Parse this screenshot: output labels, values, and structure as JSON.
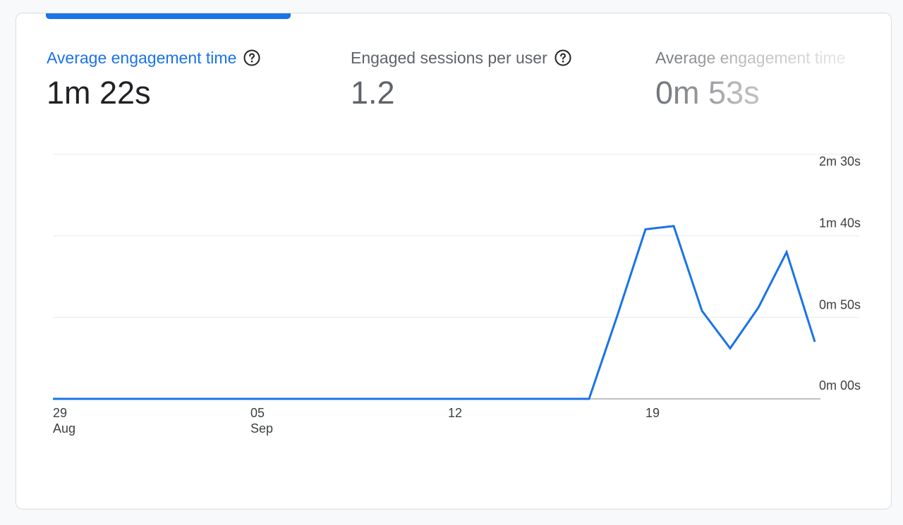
{
  "metrics": [
    {
      "label": "Average engagement time",
      "value": "1m 22s",
      "active": true
    },
    {
      "label": "Engaged sessions per user",
      "value": "1.2",
      "active": false
    },
    {
      "label": "Average engagement time",
      "value": "0m 53s",
      "active": false
    }
  ],
  "icons": {
    "help": "help-circle-icon"
  },
  "colors": {
    "accent": "#1a73e8",
    "line": "#1a73e8",
    "grid": "#e8eaed",
    "text": "#202124",
    "muted": "#5f6368"
  },
  "chart_data": {
    "type": "line",
    "title": "",
    "xlabel": "",
    "ylabel": "",
    "x_ticks": [
      {
        "day": "29",
        "month": "Aug"
      },
      {
        "day": "05",
        "month": "Sep"
      },
      {
        "day": "12",
        "month": ""
      },
      {
        "day": "19",
        "month": ""
      }
    ],
    "y_ticks": [
      "0m 00s",
      "0m 50s",
      "1m 40s",
      "2m 30s"
    ],
    "ylim": [
      0,
      150
    ],
    "y_unit": "seconds",
    "grid": true,
    "y_axis_position": "right",
    "series": [
      {
        "x": [
          "Aug 29",
          "Aug 30",
          "Aug 31",
          "Sep 1",
          "Sep 2",
          "Sep 3",
          "Sep 4",
          "Sep 5",
          "Sep 6",
          "Sep 7",
          "Sep 8",
          "Sep 9",
          "Sep 10",
          "Sep 11",
          "Sep 12",
          "Sep 13",
          "Sep 14",
          "Sep 15",
          "Sep 16",
          "Sep 17",
          "Sep 18",
          "Sep 19",
          "Sep 20",
          "Sep 21",
          "Sep 22",
          "Sep 23",
          "Sep 24",
          "Sep 25"
        ],
        "values": [
          0,
          0,
          0,
          0,
          0,
          0,
          0,
          0,
          0,
          0,
          0,
          0,
          0,
          0,
          0,
          0,
          0,
          0,
          0,
          0,
          51,
          104,
          106,
          54,
          31,
          56,
          90,
          35
        ]
      }
    ]
  }
}
